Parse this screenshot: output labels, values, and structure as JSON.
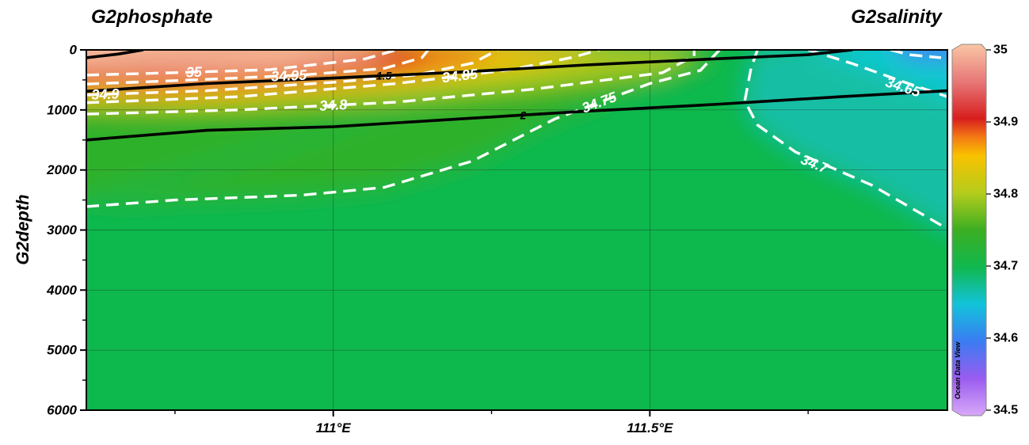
{
  "titles": {
    "left": "G2phosphate",
    "right": "G2salinity"
  },
  "watermark": "Ocean Data View",
  "chart_data": {
    "type": "heatmap",
    "ylabel": "G2depth",
    "xlabel": "",
    "x_ticks": [
      {
        "value": 111.0,
        "label": "111°E"
      },
      {
        "value": 111.5,
        "label": "111.5°E"
      }
    ],
    "xlim": [
      110.61,
      111.97
    ],
    "y_ticks": [
      {
        "value": 0,
        "label": "0"
      },
      {
        "value": 1000,
        "label": "1000"
      },
      {
        "value": 2000,
        "label": "2000"
      },
      {
        "value": 3000,
        "label": "3000"
      },
      {
        "value": 4000,
        "label": "4000"
      },
      {
        "value": 5000,
        "label": "5000"
      },
      {
        "value": 6000,
        "label": "6000"
      }
    ],
    "ylim": [
      0,
      6000
    ],
    "y_inverted": true,
    "colorbar": {
      "variable": "G2salinity",
      "range": [
        34.5,
        35.0
      ],
      "ticks": [
        "35",
        "34.9",
        "34.8",
        "34.7",
        "34.6",
        "34.5"
      ],
      "stops": [
        {
          "value": 34.5,
          "color": "#d8a8f8"
        },
        {
          "value": 34.55,
          "color": "#9a5cf0"
        },
        {
          "value": 34.6,
          "color": "#3a7cf2"
        },
        {
          "value": 34.65,
          "color": "#12c3da"
        },
        {
          "value": 34.7,
          "color": "#10b84e"
        },
        {
          "value": 34.75,
          "color": "#3cae22"
        },
        {
          "value": 34.8,
          "color": "#b4cc1c"
        },
        {
          "value": 34.85,
          "color": "#f8c200"
        },
        {
          "value": 34.875,
          "color": "#f47a14"
        },
        {
          "value": 34.9,
          "color": "#d81e1e"
        },
        {
          "value": 34.95,
          "color": "#e87878"
        },
        {
          "value": 35.0,
          "color": "#f9c6a4"
        }
      ]
    },
    "salinity_contours": [
      {
        "label": "35",
        "points": [
          [
            110.61,
            420
          ],
          [
            110.75,
            380
          ],
          [
            110.9,
            330
          ],
          [
            111.05,
            150
          ],
          [
            111.1,
            0
          ]
        ]
      },
      {
        "label": "34.95",
        "points": [
          [
            110.61,
            570
          ],
          [
            110.78,
            500
          ],
          [
            110.95,
            420
          ],
          [
            111.08,
            310
          ],
          [
            111.14,
            130
          ],
          [
            111.15,
            0
          ]
        ]
      },
      {
        "label": "34.9",
        "points": [
          [
            110.61,
            750
          ],
          [
            110.8,
            680
          ],
          [
            111.0,
            540
          ],
          [
            111.13,
            420
          ],
          [
            111.22,
            220
          ],
          [
            111.26,
            0
          ]
        ]
      },
      {
        "label": "34.85",
        "points": [
          [
            110.61,
            880
          ],
          [
            110.85,
            780
          ],
          [
            111.1,
            560
          ],
          [
            111.28,
            330
          ],
          [
            111.38,
            120
          ],
          [
            111.42,
            0
          ]
        ]
      },
      {
        "label": "34.8",
        "points": [
          [
            110.61,
            1070
          ],
          [
            110.85,
            1000
          ],
          [
            111.1,
            870
          ],
          [
            111.32,
            650
          ],
          [
            111.52,
            380
          ],
          [
            111.57,
            100
          ],
          [
            111.57,
            0
          ]
        ]
      },
      {
        "label": "34.75",
        "points": [
          [
            110.61,
            2610
          ],
          [
            110.75,
            2500
          ],
          [
            110.95,
            2420
          ],
          [
            111.08,
            2290
          ],
          [
            111.22,
            1850
          ],
          [
            111.35,
            1150
          ],
          [
            111.5,
            560
          ],
          [
            111.58,
            340
          ],
          [
            111.61,
            0
          ]
        ]
      },
      {
        "label": "34.7",
        "points": [
          [
            111.67,
            0
          ],
          [
            111.66,
            300
          ],
          [
            111.65,
            850
          ],
          [
            111.67,
            1250
          ],
          [
            111.73,
            1700
          ],
          [
            111.85,
            2250
          ],
          [
            111.97,
            2980
          ]
        ]
      },
      {
        "label": "34.65",
        "points": [
          [
            111.75,
            0
          ],
          [
            111.82,
            230
          ],
          [
            111.9,
            530
          ],
          [
            111.97,
            780
          ]
        ]
      },
      {
        "label": "",
        "points": [
          [
            111.88,
            0
          ],
          [
            111.91,
            80
          ],
          [
            111.96,
            130
          ]
        ]
      }
    ],
    "phosphate_contours": [
      {
        "label": "",
        "points": [
          [
            110.61,
            130
          ],
          [
            110.66,
            70
          ],
          [
            110.7,
            0
          ]
        ]
      },
      {
        "label": "1.5",
        "points": [
          [
            110.61,
            690
          ],
          [
            110.8,
            560
          ],
          [
            111.0,
            470
          ],
          [
            111.2,
            370
          ],
          [
            111.4,
            250
          ],
          [
            111.6,
            150
          ],
          [
            111.75,
            80
          ],
          [
            111.82,
            0
          ]
        ]
      },
      {
        "label": "2",
        "points": [
          [
            110.61,
            1500
          ],
          [
            110.8,
            1340
          ],
          [
            111.0,
            1280
          ],
          [
            111.2,
            1150
          ],
          [
            111.4,
            1020
          ],
          [
            111.6,
            910
          ],
          [
            111.8,
            780
          ],
          [
            111.97,
            680
          ]
        ]
      }
    ]
  }
}
